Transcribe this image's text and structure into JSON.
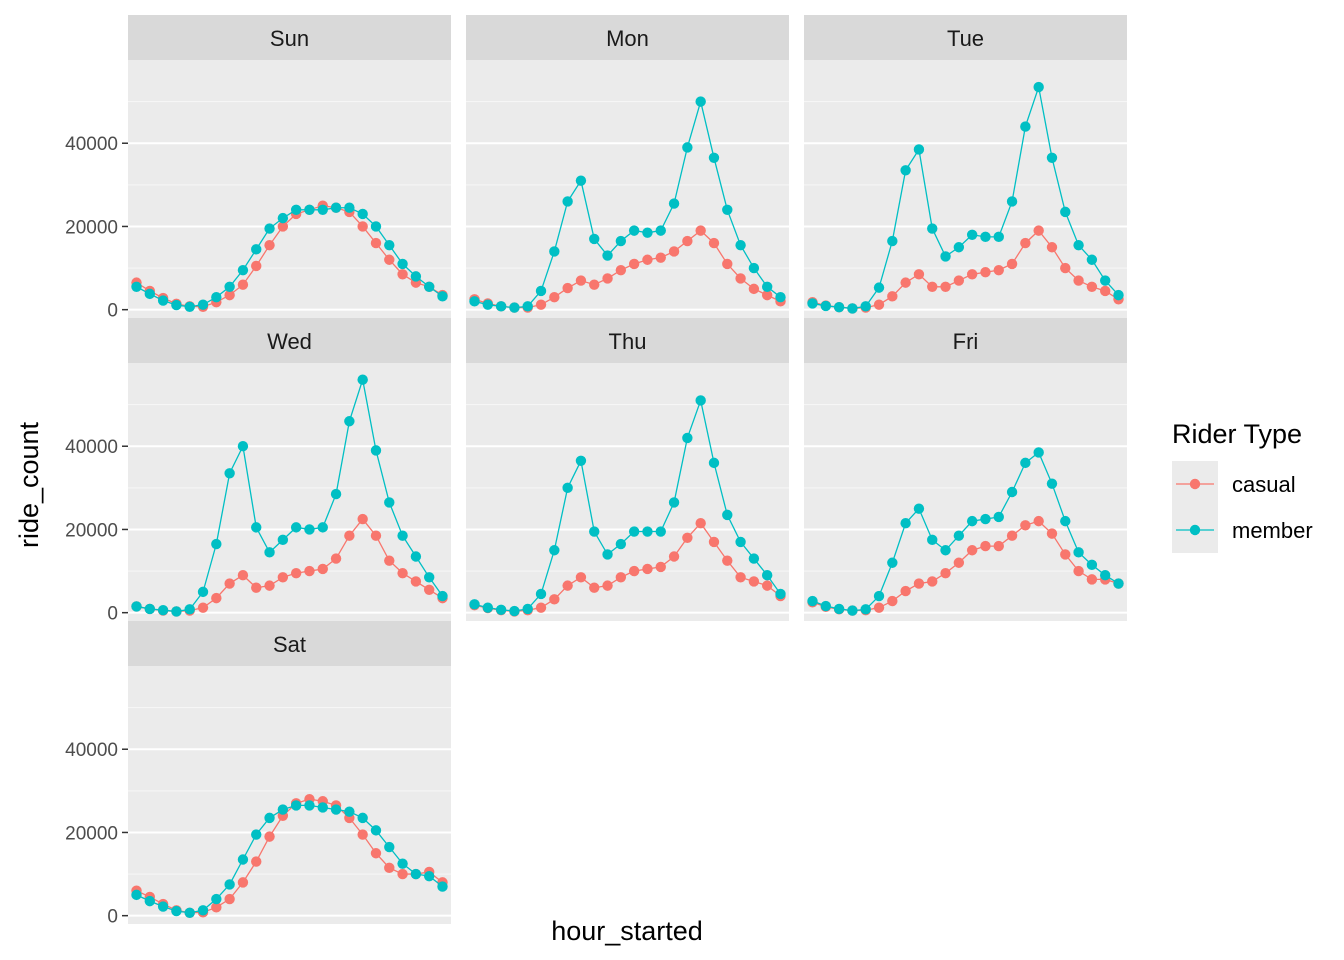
{
  "chart_data": {
    "type": "line",
    "facet_by": "day",
    "xlabel": "hour_started",
    "ylabel": "ride_count",
    "ylim": [
      -2000,
      60000
    ],
    "yticks": [
      0,
      20000,
      40000
    ],
    "ytick_labels": [
      "0",
      "20000",
      "40000"
    ],
    "x_ticks_visible": false,
    "grid": true,
    "legend": {
      "title": "Rider Type",
      "position": "right",
      "entries": [
        "casual",
        "member"
      ]
    },
    "colors": {
      "casual": "#F8766D",
      "member": "#00BFC4"
    },
    "x": [
      0,
      1,
      2,
      3,
      4,
      5,
      6,
      7,
      8,
      9,
      10,
      11,
      12,
      13,
      14,
      15,
      16,
      17,
      18,
      19,
      20,
      21,
      22,
      23
    ],
    "panels": [
      {
        "label": "Sun",
        "series": [
          {
            "name": "casual",
            "values": [
              6500,
              4500,
              2800,
              1400,
              800,
              700,
              1800,
              3500,
              6000,
              10500,
              15500,
              20000,
              23000,
              24000,
              25000,
              24500,
              23500,
              20000,
              16000,
              12000,
              8500,
              6500,
              5500,
              3500
            ]
          },
          {
            "name": "member",
            "values": [
              5500,
              3800,
              2200,
              1100,
              700,
              1200,
              3000,
              5500,
              9500,
              14500,
              19500,
              22000,
              24000,
              24000,
              24000,
              24500,
              24500,
              23000,
              20000,
              15500,
              11000,
              8000,
              5500,
              3200
            ]
          }
        ]
      },
      {
        "label": "Mon",
        "series": [
          {
            "name": "casual",
            "values": [
              2500,
              1500,
              800,
              500,
              500,
              1200,
              3000,
              5200,
              7000,
              6000,
              7500,
              9500,
              11000,
              12000,
              12500,
              14000,
              16500,
              19000,
              16000,
              11000,
              7500,
              5000,
              3500,
              2000
            ]
          },
          {
            "name": "member",
            "values": [
              2000,
              1200,
              800,
              500,
              800,
              4500,
              14000,
              26000,
              31000,
              17000,
              13000,
              16500,
              19000,
              18500,
              19000,
              25500,
              39000,
              50000,
              36500,
              24000,
              15500,
              10000,
              5500,
              3000
            ]
          }
        ]
      },
      {
        "label": "Tue",
        "series": [
          {
            "name": "casual",
            "values": [
              1800,
              1000,
              600,
              300,
              500,
              1200,
              3200,
              6500,
              8500,
              5500,
              5500,
              7000,
              8500,
              9000,
              9500,
              11000,
              16000,
              19000,
              15000,
              10000,
              7000,
              5500,
              4500,
              2500
            ]
          },
          {
            "name": "member",
            "values": [
              1500,
              900,
              600,
              300,
              800,
              5300,
              16500,
              33500,
              38500,
              19500,
              12800,
              15000,
              18000,
              17500,
              17500,
              26000,
              44000,
              53500,
              36500,
              23500,
              15500,
              12000,
              7000,
              3500
            ]
          }
        ]
      },
      {
        "label": "Wed",
        "series": [
          {
            "name": "casual",
            "values": [
              1500,
              900,
              500,
              300,
              500,
              1200,
              3500,
              7000,
              9000,
              6000,
              6500,
              8500,
              9500,
              10000,
              10500,
              13000,
              18500,
              22500,
              18500,
              12500,
              9500,
              7500,
              5500,
              3500
            ]
          },
          {
            "name": "member",
            "values": [
              1500,
              900,
              600,
              300,
              800,
              5000,
              16500,
              33500,
              40000,
              20500,
              14500,
              17500,
              20500,
              20000,
              20500,
              28500,
              46000,
              56000,
              39000,
              26500,
              18500,
              13500,
              8500,
              4000
            ]
          }
        ]
      },
      {
        "label": "Thu",
        "series": [
          {
            "name": "casual",
            "values": [
              1800,
              1100,
              600,
              300,
              600,
              1200,
              3200,
              6500,
              8500,
              6000,
              6500,
              8500,
              10000,
              10500,
              11000,
              13500,
              18000,
              21500,
              17000,
              12500,
              8500,
              7500,
              6500,
              4000
            ]
          },
          {
            "name": "member",
            "values": [
              2000,
              1200,
              700,
              400,
              900,
              4500,
              15000,
              30000,
              36500,
              19500,
              14000,
              16500,
              19500,
              19500,
              19500,
              26500,
              42000,
              51000,
              36000,
              23500,
              17000,
              13000,
              9000,
              4500
            ]
          }
        ]
      },
      {
        "label": "Fri",
        "series": [
          {
            "name": "casual",
            "values": [
              2500,
              1400,
              800,
              500,
              600,
              1200,
              2800,
              5200,
              7000,
              7500,
              9500,
              12000,
              15000,
              16000,
              16000,
              18500,
              21000,
              22000,
              19000,
              14000,
              10000,
              8000,
              8000,
              7000
            ]
          },
          {
            "name": "member",
            "values": [
              2800,
              1600,
              900,
              500,
              800,
              4000,
              12000,
              21500,
              25000,
              17500,
              15000,
              18500,
              22000,
              22500,
              23000,
              29000,
              36000,
              38500,
              31000,
              22000,
              14500,
              11500,
              9000,
              7000
            ]
          }
        ]
      },
      {
        "label": "Sat",
        "series": [
          {
            "name": "casual",
            "values": [
              6000,
              4500,
              2800,
              1300,
              700,
              800,
              2000,
              4000,
              8000,
              13000,
              19000,
              24000,
              27000,
              28000,
              27500,
              26500,
              23500,
              19500,
              15000,
              11500,
              10000,
              10000,
              10500,
              8000
            ]
          },
          {
            "name": "member",
            "values": [
              5000,
              3500,
              2200,
              1100,
              700,
              1300,
              4000,
              7500,
              13500,
              19500,
              23500,
              25500,
              26500,
              26500,
              26000,
              25500,
              25000,
              23500,
              20500,
              16500,
              12500,
              10000,
              9500,
              7000
            ]
          }
        ]
      }
    ]
  }
}
